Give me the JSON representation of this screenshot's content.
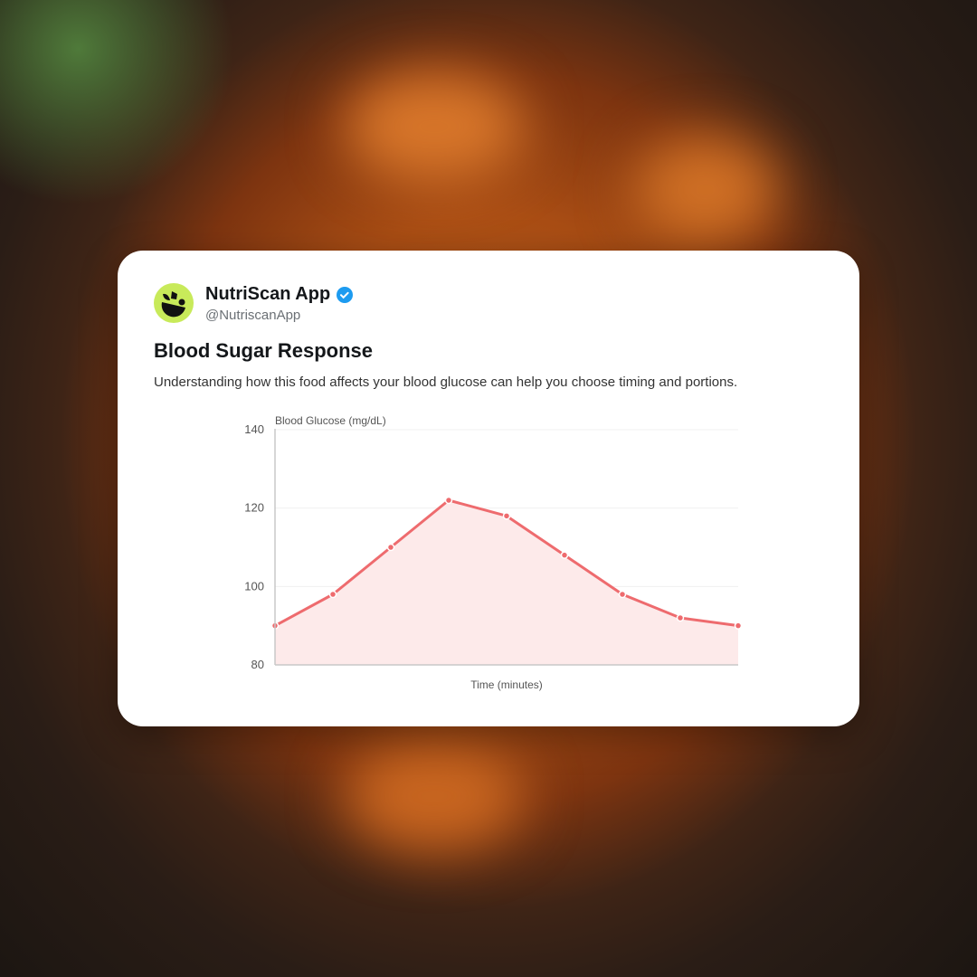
{
  "profile": {
    "name": "NutriScan App",
    "handle": "@NutriscanApp",
    "verified": true,
    "avatar_icon": "leaf-bowl-icon",
    "avatar_color": "#c8ea5a",
    "verified_color": "#1d9bf0"
  },
  "post": {
    "title": "Blood Sugar Response",
    "description": "Understanding how this food affects your blood glucose can help you choose timing and portions."
  },
  "chart_data": {
    "type": "area",
    "title": "",
    "ylabel": "Blood Glucose (mg/dL)",
    "xlabel": "Time (minutes)",
    "ylim": [
      80,
      140
    ],
    "yticks": [
      80,
      100,
      120,
      140
    ],
    "grid": true,
    "color": "#ee6b6e",
    "fill_color": "#fdeaea",
    "values": [
      90,
      98,
      110,
      122,
      118,
      108,
      98,
      92,
      90
    ]
  }
}
